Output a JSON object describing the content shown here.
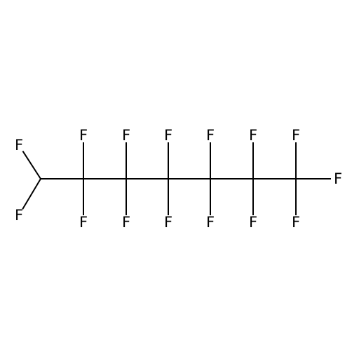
{
  "molecule": {
    "atoms": [
      {
        "id": "F1",
        "symbol": "F"
      },
      {
        "id": "C1",
        "symbol": "C"
      },
      {
        "id": "F2",
        "symbol": "F"
      },
      {
        "id": "C2",
        "symbol": "C"
      },
      {
        "id": "F3",
        "symbol": "F"
      },
      {
        "id": "F4",
        "symbol": "F"
      },
      {
        "id": "C3",
        "symbol": "C"
      },
      {
        "id": "F5",
        "symbol": "F"
      },
      {
        "id": "F6",
        "symbol": "F"
      },
      {
        "id": "C4",
        "symbol": "C"
      },
      {
        "id": "F7",
        "symbol": "F"
      },
      {
        "id": "F8",
        "symbol": "F"
      },
      {
        "id": "C5",
        "symbol": "C"
      },
      {
        "id": "F9",
        "symbol": "F"
      },
      {
        "id": "F10",
        "symbol": "F"
      },
      {
        "id": "C6",
        "symbol": "C"
      },
      {
        "id": "F11",
        "symbol": "F"
      },
      {
        "id": "F12",
        "symbol": "F"
      },
      {
        "id": "C7",
        "symbol": "C"
      },
      {
        "id": "F13",
        "symbol": "F"
      },
      {
        "id": "F14",
        "symbol": "F"
      },
      {
        "id": "F15",
        "symbol": "F"
      }
    ],
    "bonds": [
      [
        "F1",
        "C1"
      ],
      [
        "F2",
        "C1"
      ],
      [
        "C1",
        "C2"
      ],
      [
        "C2",
        "F3"
      ],
      [
        "C2",
        "F4"
      ],
      [
        "C2",
        "C3"
      ],
      [
        "C3",
        "F5"
      ],
      [
        "C3",
        "F6"
      ],
      [
        "C3",
        "C4"
      ],
      [
        "C4",
        "F7"
      ],
      [
        "C4",
        "F8"
      ],
      [
        "C4",
        "C5"
      ],
      [
        "C5",
        "F9"
      ],
      [
        "C5",
        "F10"
      ],
      [
        "C5",
        "C6"
      ],
      [
        "C6",
        "F11"
      ],
      [
        "C6",
        "F12"
      ],
      [
        "C6",
        "C7"
      ],
      [
        "C7",
        "F13"
      ],
      [
        "C7",
        "F14"
      ],
      [
        "C7",
        "F15"
      ]
    ]
  }
}
